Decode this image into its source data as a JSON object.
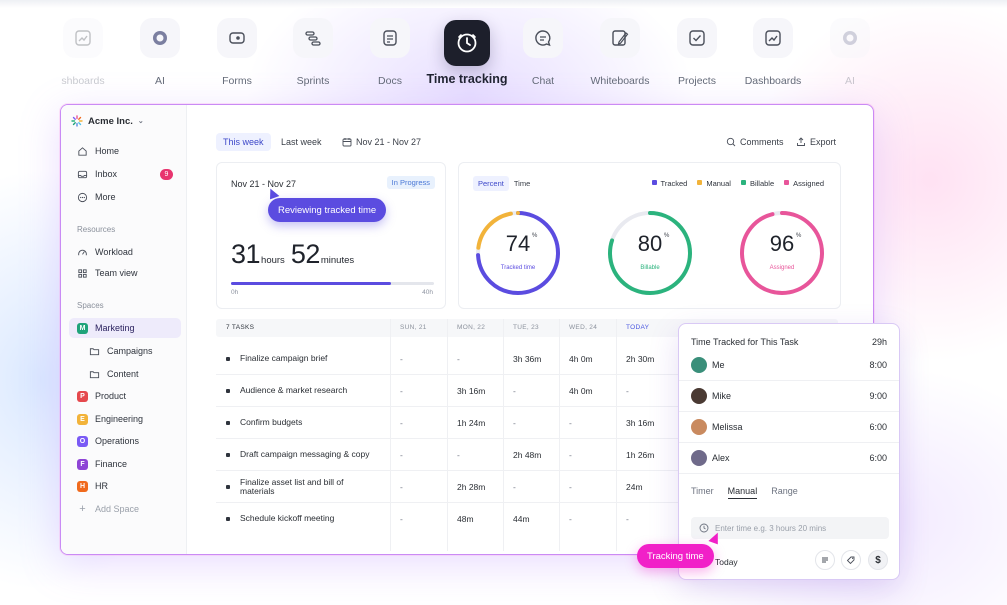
{
  "feature_nav": [
    {
      "label": "shboards",
      "icon": "dashboard-icon",
      "state": "faded"
    },
    {
      "label": "AI",
      "icon": "ai-icon",
      "state": "normal"
    },
    {
      "label": "Forms",
      "icon": "forms-icon",
      "state": "normal"
    },
    {
      "label": "Sprints",
      "icon": "sprints-icon",
      "state": "normal"
    },
    {
      "label": "Docs",
      "icon": "docs-icon",
      "state": "normal"
    },
    {
      "label": "Time tracking",
      "icon": "clock-icon",
      "state": "active"
    },
    {
      "label": "Chat",
      "icon": "chat-icon",
      "state": "normal"
    },
    {
      "label": "Whiteboards",
      "icon": "whiteboard-icon",
      "state": "normal"
    },
    {
      "label": "Projects",
      "icon": "projects-icon",
      "state": "normal"
    },
    {
      "label": "Dashboards",
      "icon": "dashboard-icon",
      "state": "normal"
    },
    {
      "label": "AI",
      "icon": "ai-icon",
      "state": "faded"
    }
  ],
  "sidebar": {
    "workspace": "Acme Inc.",
    "nav": [
      {
        "label": "Home",
        "icon": "home-icon"
      },
      {
        "label": "Inbox",
        "icon": "inbox-icon",
        "badge": "9"
      },
      {
        "label": "More",
        "icon": "more-icon"
      }
    ],
    "resources_heading": "Resources",
    "resources": [
      {
        "label": "Workload",
        "icon": "gauge-icon"
      },
      {
        "label": "Team view",
        "icon": "grid-icon"
      }
    ],
    "spaces_heading": "Spaces",
    "spaces": [
      {
        "label": "Marketing",
        "letter": "M",
        "color": "#1fa37a",
        "active": true
      },
      {
        "label": "Campaigns",
        "folder": true
      },
      {
        "label": "Content",
        "folder": true
      },
      {
        "label": "Product",
        "letter": "P",
        "color": "#e5484d"
      },
      {
        "label": "Engineering",
        "letter": "E",
        "color": "#f2b33a"
      },
      {
        "label": "Operations",
        "letter": "O",
        "color": "#7a5af5"
      },
      {
        "label": "Finance",
        "letter": "F",
        "color": "#8e44d6"
      },
      {
        "label": "HR",
        "letter": "H",
        "color": "#f06a1d"
      }
    ],
    "add_space": "Add Space"
  },
  "toolbar": {
    "this_week": "This week",
    "last_week": "Last week",
    "date_range": "Nov 21 - Nov 27",
    "comments": "Comments",
    "export": "Export"
  },
  "summary": {
    "date_range": "Nov 21 - Nov 27",
    "status": "In Progress",
    "hours": "31",
    "hours_unit": "hours",
    "minutes": "52",
    "minutes_unit": "minutes",
    "progress_fraction": 0.79,
    "bar_min": "0h",
    "bar_max": "40h",
    "tooltip": "Reviewing tracked time"
  },
  "stats": {
    "toggle_percent": "Percent",
    "toggle_time": "Time",
    "legend": [
      {
        "label": "Tracked",
        "color": "#5b4ce0"
      },
      {
        "label": "Manual",
        "color": "#f2b33a"
      },
      {
        "label": "Billable",
        "color": "#2bb37d"
      },
      {
        "label": "Assigned",
        "color": "#e8559a"
      }
    ],
    "donuts": [
      {
        "value": "74",
        "label": "Tracked time",
        "color": "#5b4ce0",
        "accent": "#f2b33a",
        "fraction": 0.74
      },
      {
        "value": "80",
        "label": "Billable",
        "color": "#2bb37d",
        "fraction": 0.8
      },
      {
        "value": "96",
        "label": "Assigned",
        "color": "#e8559a",
        "fraction": 0.96
      }
    ],
    "pct_symbol": "%"
  },
  "table": {
    "headers": [
      "7 TASKS",
      "SUN, 21",
      "MON, 22",
      "TUE, 23",
      "WED, 24",
      "TODAY"
    ],
    "rows": [
      {
        "name": "Finalize campaign brief",
        "cells": [
          "-",
          "-",
          "3h 36m",
          "4h 0m",
          "2h 30m"
        ]
      },
      {
        "name": "Audience & market research",
        "cells": [
          "-",
          "3h 16m",
          "-",
          "4h 0m",
          "-"
        ]
      },
      {
        "name": "Confirm budgets",
        "cells": [
          "-",
          "1h 24m",
          "-",
          "-",
          "3h 16m"
        ]
      },
      {
        "name": "Draft campaign messaging & copy",
        "cells": [
          "-",
          "-",
          "2h 48m",
          "-",
          "1h 26m"
        ]
      },
      {
        "name": "Finalize asset list and bill of materials",
        "cells": [
          "-",
          "2h 28m",
          "-",
          "-",
          "24m"
        ]
      },
      {
        "name": "Schedule kickoff meeting",
        "cells": [
          "-",
          "48m",
          "44m",
          "-",
          "-"
        ]
      }
    ]
  },
  "popover": {
    "title": "Time Tracked for This Task",
    "total": "29h",
    "people": [
      {
        "name": "Me",
        "time": "8:00",
        "color": "#3a8f7a"
      },
      {
        "name": "Mike",
        "time": "9:00",
        "color": "#4a3a33"
      },
      {
        "name": "Melissa",
        "time": "6:00",
        "color": "#c98a5f"
      },
      {
        "name": "Alex",
        "time": "6:00",
        "color": "#6f6a8a"
      }
    ],
    "tabs": [
      "Timer",
      "Manual",
      "Range"
    ],
    "active_tab": "Manual",
    "input_placeholder": "Enter time e.g. 3 hours 20 mins",
    "date_label": "Today",
    "dollar": "$"
  },
  "tracking_pill": "Tracking time"
}
